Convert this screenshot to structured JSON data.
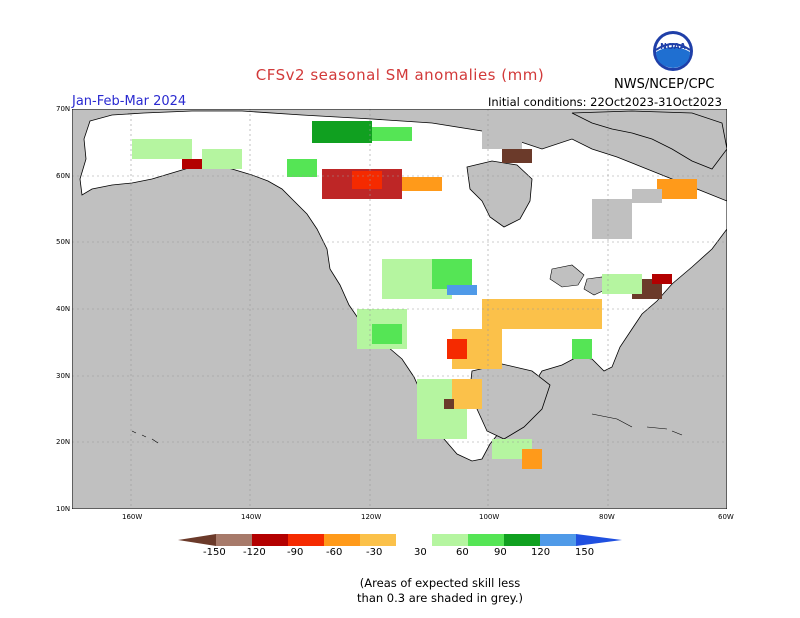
{
  "title": "CFSv2 seasonal SM anomalies (mm)",
  "period": "Jan-Feb-Mar 2024",
  "initial_conditions": "Initial conditions: 22Oct2023-31Oct2023",
  "agency": "NWS/NCEP/CPC",
  "logo_text": "NOAA",
  "lat_labels": [
    "70N",
    "60N",
    "50N",
    "40N",
    "30N",
    "20N",
    "10N"
  ],
  "lon_labels": [
    "160W",
    "140W",
    "120W",
    "100W",
    "80W",
    "60W"
  ],
  "colorbar": {
    "ticks": [
      "-150",
      "-120",
      "-90",
      "-60",
      "-30",
      "30",
      "60",
      "90",
      "120",
      "150"
    ],
    "colors": [
      "#6b3a2a",
      "#a77a6a",
      "#b30000",
      "#f52a00",
      "#ff9a1a",
      "#fbc14a",
      "#ffffff",
      "#b5f5a0",
      "#55e555",
      "#10a020",
      "#4f9ae8",
      "#2050e0"
    ],
    "unit": "mm"
  },
  "note_lines": [
    "(Areas of expected skill less",
    "than 0.3 are shaded in grey.)"
  ],
  "colors": {
    "title": "#d23a3a",
    "period": "#2a2ad0",
    "land_grey": "#c0c0c0",
    "ocean": "#c0c0c0"
  }
}
